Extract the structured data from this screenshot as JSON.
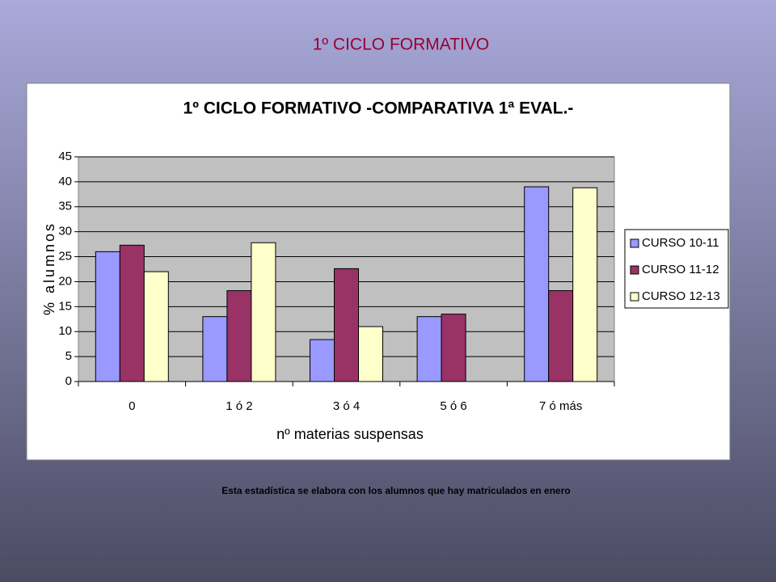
{
  "heading": "1º CICLO FORMATIVO",
  "footer": "Esta estadística se elabora con los alumnos que hay matriculados en enero",
  "chart_data": {
    "type": "bar",
    "title": "1º CICLO FORMATIVO -COMPARATIVA 1ª EVAL.-",
    "x_label": "nº materias suspensas",
    "y_label": "% alumnos",
    "categories": [
      "0",
      "1 ó 2",
      "3 ó 4",
      "5 ó 6",
      "7 ó más"
    ],
    "series": [
      {
        "name": "CURSO 10-11",
        "color": "#9999ff",
        "values": [
          26,
          13,
          8.4,
          13,
          39
        ]
      },
      {
        "name": "CURSO 11-12",
        "color": "#993366",
        "values": [
          27.3,
          18.2,
          22.6,
          13.5,
          18.2
        ]
      },
      {
        "name": "CURSO 12-13",
        "color": "#ffffcc",
        "values": [
          22,
          27.8,
          11,
          null,
          38.8
        ]
      }
    ],
    "ylim": [
      0,
      45
    ],
    "yticks": [
      0,
      5,
      10,
      15,
      20,
      25,
      30,
      35,
      40,
      45
    ],
    "grid": true,
    "legend": "right"
  }
}
